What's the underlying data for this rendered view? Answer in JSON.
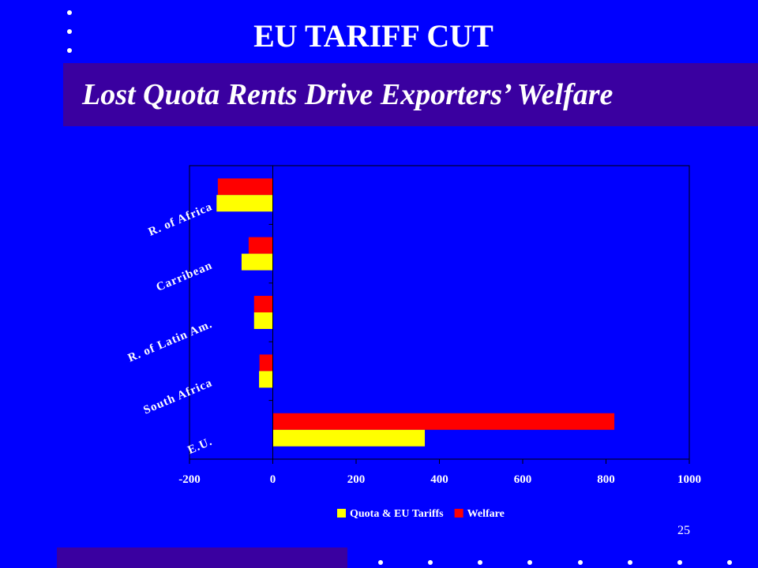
{
  "slide": {
    "title": "EU TARIFF CUT",
    "subtitle": "Lost Quota Rents Drive Exporters’ Welfare",
    "page_number": "25",
    "background_color": "#0000FF",
    "band_color": "#3A00A0"
  },
  "chart_data": {
    "type": "bar",
    "orientation": "horizontal",
    "categories": [
      "E.U.",
      "South Africa",
      "R. of Latin Am.",
      "Carribean",
      "R. of Africa"
    ],
    "series": [
      {
        "name": "Quota & EU Tariffs",
        "color": "#FFFF00",
        "values": [
          365,
          -33,
          -45,
          -75,
          -135
        ]
      },
      {
        "name": "Welfare",
        "color": "#FF0000",
        "values": [
          820,
          -32,
          -45,
          -58,
          -132
        ]
      }
    ],
    "xlim": [
      -200,
      1000
    ],
    "xticks": [
      -200,
      0,
      200,
      400,
      600,
      800,
      1000
    ],
    "grid": false,
    "legend_position": "bottom"
  }
}
